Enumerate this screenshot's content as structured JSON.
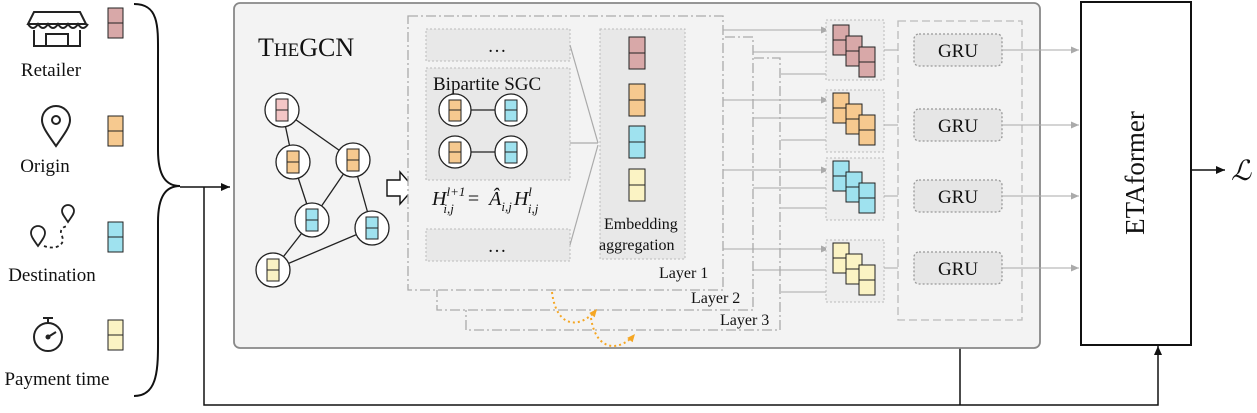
{
  "inputs": [
    {
      "label": "Retailer",
      "icon": "store-icon",
      "color": "#d8a8a8"
    },
    {
      "label": "Origin",
      "icon": "map-pin-icon",
      "color": "#f6c98f"
    },
    {
      "label": "Destination",
      "icon": "route-icon",
      "color": "#9fe2ef"
    },
    {
      "label": "Payment time",
      "icon": "stopwatch-icon",
      "color": "#fbf3c4"
    }
  ],
  "thegcn": {
    "title_big1": "T",
    "title_small": "HE",
    "title_big2": "GCN"
  },
  "sgc": {
    "top_ellipsis": "…",
    "bottom_ellipsis": "…",
    "bipartite_label": "Bipartite SGC",
    "formula_lhs": "H",
    "formula_lhs_sup": "l+1",
    "formula_lhs_sub": "i,j",
    "formula_eq": "=",
    "formula_a": "Â",
    "formula_a_sub": "i,j",
    "formula_rhs": "H",
    "formula_rhs_sup": "l",
    "formula_rhs_sub": "i,j"
  },
  "aggregation": {
    "line1": "Embedding",
    "line2": "aggregation"
  },
  "layers": [
    "Layer 1",
    "Layer 2",
    "Layer 3"
  ],
  "gru_labels": [
    "GRU",
    "GRU",
    "GRU",
    "GRU"
  ],
  "etaformer": "ETAformer",
  "loss": "ℒ",
  "colors": {
    "pink": "#d8a8a8",
    "orange": "#f6c98f",
    "cyan": "#9fe2ef",
    "yellow": "#fbf3c4",
    "dashed_arrow": "#f5a623"
  }
}
